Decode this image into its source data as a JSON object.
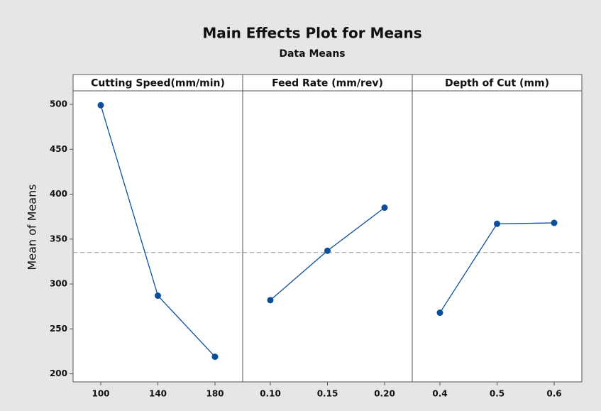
{
  "chart_data": {
    "type": "line",
    "title": "Main Effects Plot for Means",
    "subtitle": "Data Means",
    "ylabel": "Mean of Means",
    "ylim": [
      191,
      515
    ],
    "yticks": [
      200,
      250,
      300,
      350,
      400,
      450,
      500
    ],
    "reference_line": 335,
    "color": "#0b4f9c",
    "panels": [
      {
        "title": "Cutting Speed(mm/min)",
        "categories": [
          "100",
          "140",
          "180"
        ],
        "values": [
          499,
          287,
          219
        ]
      },
      {
        "title": "Feed Rate (mm/rev)",
        "categories": [
          "0.10",
          "0.15",
          "0.20"
        ],
        "values": [
          282,
          337,
          385
        ]
      },
      {
        "title": "Depth of Cut (mm)",
        "categories": [
          "0.4",
          "0.5",
          "0.6"
        ],
        "values": [
          268,
          367,
          368
        ]
      }
    ]
  }
}
